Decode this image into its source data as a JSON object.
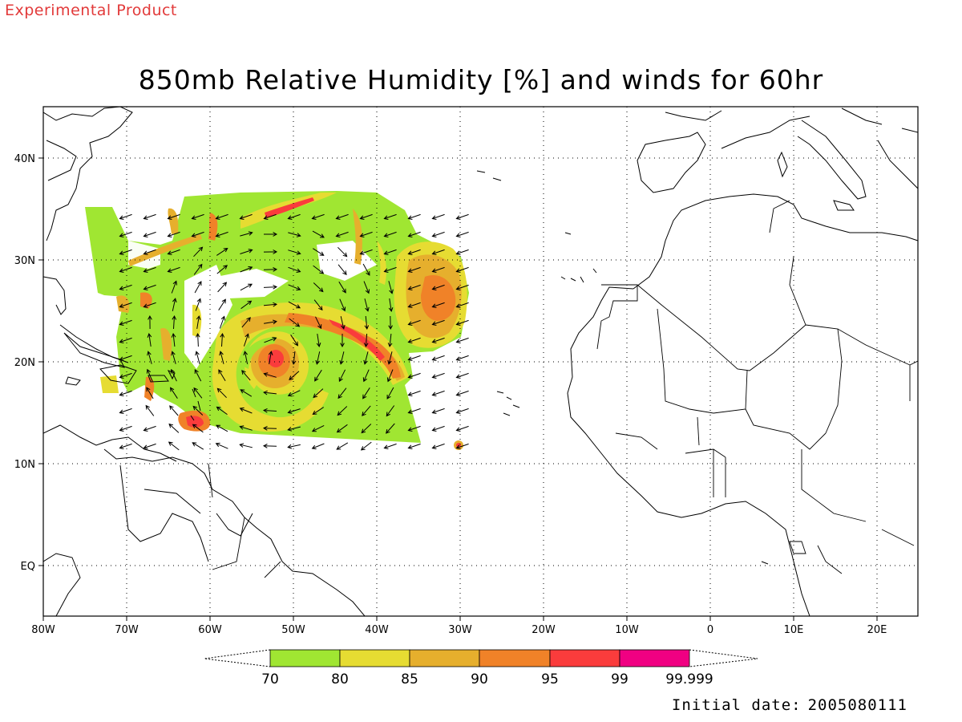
{
  "header": {
    "experimental_label": "Experimental Product",
    "title": "850mb Relative Humidity [%] and winds for 60hr"
  },
  "map": {
    "lon_ticks": [
      "80W",
      "70W",
      "60W",
      "50W",
      "40W",
      "30W",
      "20W",
      "10W",
      "0",
      "10E",
      "20E"
    ],
    "lat_ticks": [
      "40N",
      "30N",
      "20N",
      "10N",
      "EQ"
    ],
    "lon_range": [
      -80,
      25
    ],
    "lat_range": [
      -5,
      45
    ],
    "gridlines": true,
    "features": [
      "coastlines",
      "country-borders",
      "rh-shading",
      "wind-vectors"
    ]
  },
  "colorbar": {
    "labels": [
      "70",
      "80",
      "85",
      "90",
      "95",
      "99",
      "99.999"
    ],
    "colors": [
      "#a0e632",
      "#e6dc32",
      "#e6af2d",
      "#f08228",
      "#fa3c3c",
      "#f00082"
    ]
  },
  "footer": {
    "initial_date_label": "Initial date:",
    "initial_date_value": "2005080111"
  }
}
